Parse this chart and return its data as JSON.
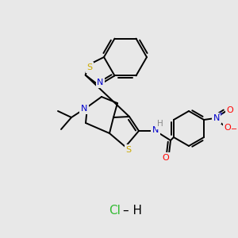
{
  "background_color": "#e8e8e8",
  "bond_color": "#000000",
  "atom_colors": {
    "N": "#0000cd",
    "S": "#ccaa00",
    "O": "#ff0000",
    "H": "#888888",
    "C": "#000000",
    "Cl": "#33bb33"
  },
  "figsize": [
    3.0,
    3.0
  ],
  "dpi": 100
}
